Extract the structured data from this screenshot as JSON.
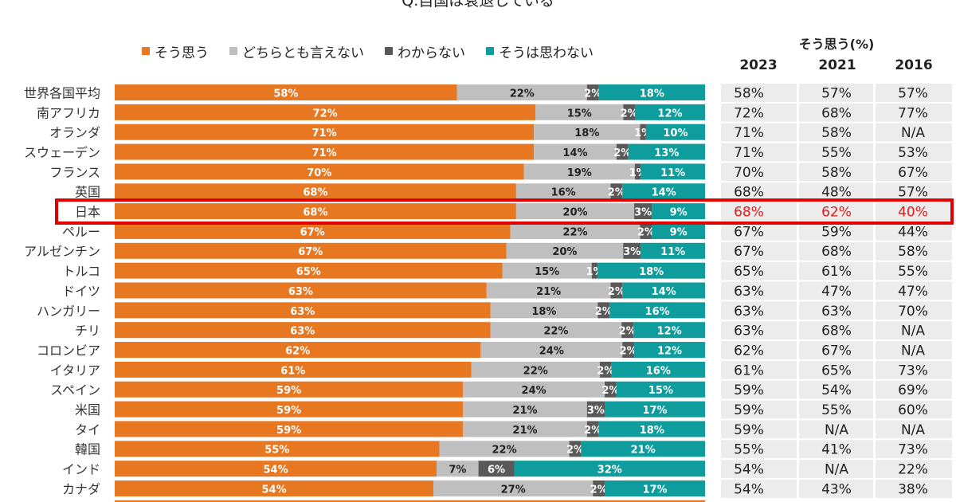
{
  "title": "Q.自国は衰退している",
  "legend": [
    {
      "label": "そう思う",
      "color": "#e87722"
    },
    {
      "label": "どちらとも言えない",
      "color": "#bfbfbf"
    },
    {
      "label": "わからない",
      "color": "#595959"
    },
    {
      "label": "そうは思わない",
      "color": "#0e9c9c"
    }
  ],
  "table": {
    "title": "そう思う(%)",
    "years": [
      "2023",
      "2021",
      "2016"
    ]
  },
  "highlight_country": "日本",
  "chart_data": {
    "type": "bar",
    "orientation": "horizontal",
    "stacked": true,
    "normalized": true,
    "title": "Q.自国は衰退している",
    "categories": [
      "世界各国平均",
      "南アフリカ",
      "オランダ",
      "スウェーデン",
      "フランス",
      "英国",
      "日本",
      "ペルー",
      "アルゼンチン",
      "トルコ",
      "ドイツ",
      "ハンガリー",
      "チリ",
      "コロンビア",
      "イタリア",
      "スペイン",
      "米国",
      "タイ",
      "韓国",
      "インド",
      "カナダ"
    ],
    "series": [
      {
        "name": "そう思う",
        "color": "#e87722",
        "values": [
          58,
          72,
          71,
          71,
          70,
          68,
          68,
          67,
          67,
          65,
          63,
          63,
          63,
          62,
          61,
          59,
          59,
          59,
          55,
          54,
          54
        ]
      },
      {
        "name": "どちらとも言えない",
        "color": "#bfbfbf",
        "values": [
          22,
          15,
          18,
          14,
          19,
          16,
          20,
          22,
          20,
          15,
          21,
          18,
          22,
          24,
          22,
          24,
          21,
          21,
          22,
          7,
          27
        ]
      },
      {
        "name": "わからない",
        "color": "#595959",
        "values": [
          2,
          2,
          1,
          2,
          1,
          2,
          3,
          2,
          3,
          1,
          2,
          2,
          2,
          2,
          2,
          2,
          3,
          2,
          2,
          6,
          2
        ]
      },
      {
        "name": "そうは思わない",
        "color": "#0e9c9c",
        "values": [
          18,
          12,
          10,
          13,
          11,
          14,
          9,
          9,
          11,
          18,
          14,
          16,
          12,
          12,
          16,
          15,
          17,
          18,
          21,
          32,
          17
        ]
      }
    ],
    "table_values": [
      [
        "58%",
        "57%",
        "57%"
      ],
      [
        "72%",
        "68%",
        "77%"
      ],
      [
        "71%",
        "58%",
        "N/A"
      ],
      [
        "71%",
        "55%",
        "53%"
      ],
      [
        "70%",
        "58%",
        "67%"
      ],
      [
        "68%",
        "48%",
        "57%"
      ],
      [
        "68%",
        "62%",
        "40%"
      ],
      [
        "67%",
        "59%",
        "44%"
      ],
      [
        "67%",
        "68%",
        "58%"
      ],
      [
        "65%",
        "61%",
        "55%"
      ],
      [
        "63%",
        "47%",
        "47%"
      ],
      [
        "63%",
        "63%",
        "70%"
      ],
      [
        "63%",
        "68%",
        "N/A"
      ],
      [
        "62%",
        "67%",
        "N/A"
      ],
      [
        "61%",
        "65%",
        "73%"
      ],
      [
        "59%",
        "54%",
        "69%"
      ],
      [
        "59%",
        "55%",
        "60%"
      ],
      [
        "59%",
        "N/A",
        "N/A"
      ],
      [
        "55%",
        "41%",
        "73%"
      ],
      [
        "54%",
        "N/A",
        "22%"
      ],
      [
        "54%",
        "43%",
        "38%"
      ]
    ],
    "xlim": [
      0,
      100
    ],
    "value_format": "percent"
  }
}
